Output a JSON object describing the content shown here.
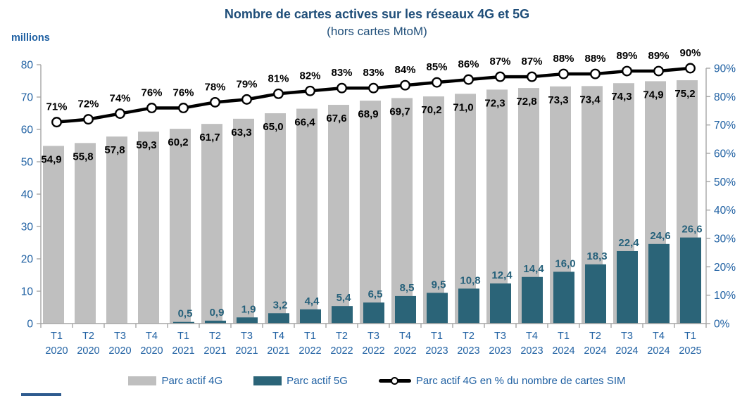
{
  "page": {
    "title": "Nombre de cartes actives sur les réseaux 4G et 5G",
    "subtitle": "(hors cartes MtoM)",
    "unit_label": "millions"
  },
  "colors": {
    "title_text": "#1F4E79",
    "axis_text": "#2061A3",
    "bar_4g": "#BFBFBF",
    "bar_5g": "#2B6478",
    "label_4g": "#000000",
    "label_5g": "#26617B",
    "line": "#000000",
    "marker_fill": "#FFFFFF",
    "axis_line": "#A6A6A6"
  },
  "chart_data": {
    "type": "bar+line",
    "categories": [
      {
        "quarter": "T1",
        "year": "2020"
      },
      {
        "quarter": "T2",
        "year": "2020"
      },
      {
        "quarter": "T3",
        "year": "2020"
      },
      {
        "quarter": "T4",
        "year": "2020"
      },
      {
        "quarter": "T1",
        "year": "2021"
      },
      {
        "quarter": "T2",
        "year": "2021"
      },
      {
        "quarter": "T3",
        "year": "2021"
      },
      {
        "quarter": "T4",
        "year": "2021"
      },
      {
        "quarter": "T1",
        "year": "2022"
      },
      {
        "quarter": "T2",
        "year": "2022"
      },
      {
        "quarter": "T3",
        "year": "2022"
      },
      {
        "quarter": "T4",
        "year": "2022"
      },
      {
        "quarter": "T1",
        "year": "2023"
      },
      {
        "quarter": "T2",
        "year": "2023"
      },
      {
        "quarter": "T3",
        "year": "2023"
      },
      {
        "quarter": "T4",
        "year": "2023"
      },
      {
        "quarter": "T1",
        "year": "2024"
      },
      {
        "quarter": "T2",
        "year": "2024"
      },
      {
        "quarter": "T3",
        "year": "2024"
      },
      {
        "quarter": "T4",
        "year": "2024"
      },
      {
        "quarter": "T1",
        "year": "2025"
      }
    ],
    "series": [
      {
        "name": "Parc actif 4G",
        "type": "bar",
        "color": "#BFBFBF",
        "axis": "left",
        "labels": [
          "54,9",
          "55,8",
          "57,8",
          "59,3",
          "60,2",
          "61,7",
          "63,3",
          "65,0",
          "66,4",
          "67,6",
          "68,9",
          "69,7",
          "70,2",
          "71,0",
          "72,3",
          "72,8",
          "73,3",
          "73,4",
          "74,3",
          "74,9",
          "75,2"
        ]
      },
      {
        "name": "Parc actif 5G",
        "type": "bar",
        "color": "#2B6478",
        "axis": "left",
        "labels": [
          "",
          "",
          "",
          "",
          "0,5",
          "0,9",
          "1,9",
          "3,2",
          "4,4",
          "5,4",
          "6,5",
          "8,5",
          "9,5",
          "10,8",
          "12,4",
          "14,4",
          "16,0",
          "18,3",
          "22,4",
          "24,6",
          "26,6"
        ]
      },
      {
        "name": "Parc actif 4G en % du nombre de cartes SIM",
        "type": "line",
        "color": "#000000",
        "axis": "right",
        "labels": [
          "71%",
          "72%",
          "74%",
          "76%",
          "76%",
          "78%",
          "79%",
          "81%",
          "82%",
          "83%",
          "83%",
          "84%",
          "85%",
          "86%",
          "87%",
          "87%",
          "88%",
          "88%",
          "89%",
          "89%",
          "90%"
        ]
      }
    ],
    "left_axis": {
      "unit": "millions",
      "min": 0,
      "max": 80,
      "ticks": [
        "80",
        "70",
        "60",
        "50",
        "40",
        "30",
        "20",
        "10",
        "0"
      ]
    },
    "right_axis": {
      "min": 0,
      "max": 90,
      "ticks": [
        "90%",
        "80%",
        "70%",
        "60%",
        "50%",
        "40%",
        "30%",
        "20%",
        "10%",
        "0%"
      ]
    },
    "grid": "off",
    "legend_position": "bottom",
    "legend": [
      {
        "type": "bar",
        "color": "#BFBFBF",
        "label": "Parc actif 4G"
      },
      {
        "type": "bar",
        "color": "#2B6478",
        "label": "Parc actif 5G"
      },
      {
        "type": "line",
        "color": "#000000",
        "label": "Parc actif 4G en % du nombre de cartes SIM"
      }
    ]
  }
}
